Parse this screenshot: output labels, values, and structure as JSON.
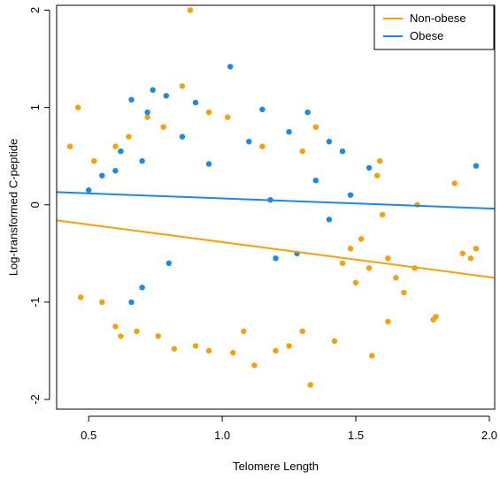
{
  "chart_data": {
    "type": "scatter",
    "title": "",
    "xlabel": "Telomere Length",
    "ylabel": "Log-transformed C-peptide",
    "xlim": [
      0.38,
      2.02
    ],
    "ylim": [
      -2.1,
      2.05
    ],
    "x_ticks": [
      0.5,
      1.0,
      1.5,
      2.0
    ],
    "x_tick_labels": [
      "0.5",
      "1.0",
      "1.5",
      "2.0"
    ],
    "y_ticks": [
      -2,
      -1,
      0,
      1,
      2
    ],
    "y_tick_labels": [
      "-2",
      "-1",
      "0",
      "1",
      "2"
    ],
    "grid": false,
    "legend_position": "top-right",
    "series": [
      {
        "name": "Non-obese",
        "color": "#F5A00F",
        "fit_line": {
          "x": [
            0.38,
            2.02
          ],
          "y": [
            -0.16,
            -0.75
          ]
        },
        "points": [
          [
            0.88,
            2.0
          ],
          [
            0.85,
            1.22
          ],
          [
            0.46,
            1.0
          ],
          [
            0.52,
            0.45
          ],
          [
            0.43,
            0.6
          ],
          [
            0.47,
            -0.95
          ],
          [
            0.55,
            -1.0
          ],
          [
            0.6,
            -1.25
          ],
          [
            0.62,
            -1.35
          ],
          [
            0.68,
            -1.3
          ],
          [
            0.76,
            -1.35
          ],
          [
            0.82,
            -1.48
          ],
          [
            0.9,
            -1.45
          ],
          [
            0.95,
            -1.5
          ],
          [
            1.04,
            -1.52
          ],
          [
            1.08,
            -1.3
          ],
          [
            1.12,
            -1.65
          ],
          [
            1.2,
            -1.5
          ],
          [
            1.25,
            -1.45
          ],
          [
            1.33,
            -1.85
          ],
          [
            1.3,
            -1.3
          ],
          [
            1.42,
            -1.4
          ],
          [
            1.56,
            -1.55
          ],
          [
            1.62,
            -1.2
          ],
          [
            1.8,
            -1.15
          ],
          [
            1.79,
            -1.18
          ],
          [
            1.87,
            0.22
          ],
          [
            1.95,
            -0.45
          ],
          [
            1.93,
            -0.55
          ],
          [
            1.9,
            -0.5
          ],
          [
            1.72,
            -0.65
          ],
          [
            1.73,
            0.0
          ],
          [
            1.6,
            -0.1
          ],
          [
            1.58,
            0.3
          ],
          [
            1.59,
            0.45
          ],
          [
            1.52,
            -0.35
          ],
          [
            1.48,
            -0.45
          ],
          [
            1.55,
            -0.65
          ],
          [
            1.5,
            -0.8
          ],
          [
            1.45,
            -0.6
          ],
          [
            1.62,
            -0.55
          ],
          [
            1.65,
            -0.75
          ],
          [
            1.68,
            -0.9
          ],
          [
            1.35,
            0.8
          ],
          [
            1.3,
            0.55
          ],
          [
            1.15,
            0.6
          ],
          [
            1.02,
            0.9
          ],
          [
            0.95,
            0.95
          ],
          [
            0.78,
            0.8
          ],
          [
            0.72,
            0.9
          ],
          [
            0.65,
            0.7
          ],
          [
            0.6,
            0.6
          ]
        ]
      },
      {
        "name": "Obese",
        "color": "#1E88E5",
        "fit_line": {
          "x": [
            0.38,
            2.02
          ],
          "y": [
            0.13,
            -0.04
          ]
        },
        "points": [
          [
            1.03,
            1.42
          ],
          [
            0.74,
            1.18
          ],
          [
            0.79,
            1.12
          ],
          [
            0.66,
            1.08
          ],
          [
            0.72,
            0.95
          ],
          [
            0.9,
            1.05
          ],
          [
            1.15,
            0.98
          ],
          [
            1.32,
            0.95
          ],
          [
            1.25,
            0.75
          ],
          [
            1.4,
            0.65
          ],
          [
            1.45,
            0.55
          ],
          [
            1.95,
            0.4
          ],
          [
            1.55,
            0.38
          ],
          [
            0.55,
            0.3
          ],
          [
            0.5,
            0.15
          ],
          [
            0.62,
            0.55
          ],
          [
            0.85,
            0.7
          ],
          [
            1.1,
            0.65
          ],
          [
            0.66,
            -1.0
          ],
          [
            0.7,
            -0.85
          ],
          [
            0.8,
            -0.6
          ],
          [
            1.2,
            -0.55
          ],
          [
            1.28,
            -0.5
          ],
          [
            1.4,
            -0.15
          ],
          [
            1.35,
            0.25
          ],
          [
            1.48,
            0.1
          ],
          [
            1.18,
            0.05
          ],
          [
            0.6,
            0.35
          ],
          [
            0.7,
            0.45
          ],
          [
            0.95,
            0.42
          ]
        ]
      }
    ]
  }
}
